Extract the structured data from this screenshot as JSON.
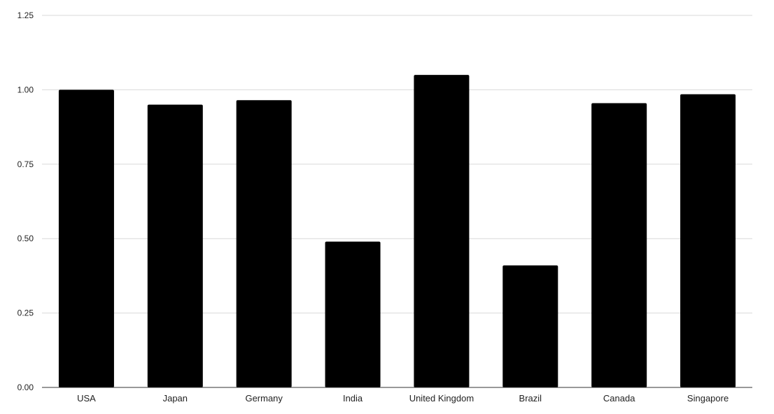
{
  "chart_data": {
    "type": "bar",
    "title": "",
    "xlabel": "",
    "ylabel": "",
    "categories": [
      "USA",
      "Japan",
      "Germany",
      "India",
      "United Kingdom",
      "Brazil",
      "Canada",
      "Singapore"
    ],
    "series": [
      {
        "values": [
          1.0,
          0.95,
          0.965,
          0.49,
          1.05,
          0.41,
          0.955,
          0.985
        ],
        "color": "#000000"
      }
    ],
    "ylim": [
      0,
      1.25
    ],
    "yticks": [
      "0.00",
      "0.25",
      "0.50",
      "0.75",
      "1.00",
      "1.25"
    ],
    "ytick_values": [
      0,
      0.25,
      0.5,
      0.75,
      1.0,
      1.25
    ],
    "grid": true,
    "legend": "none",
    "colors": {
      "bar": "#000000",
      "grid": "#d9d9d9",
      "axis": "#333333"
    }
  }
}
